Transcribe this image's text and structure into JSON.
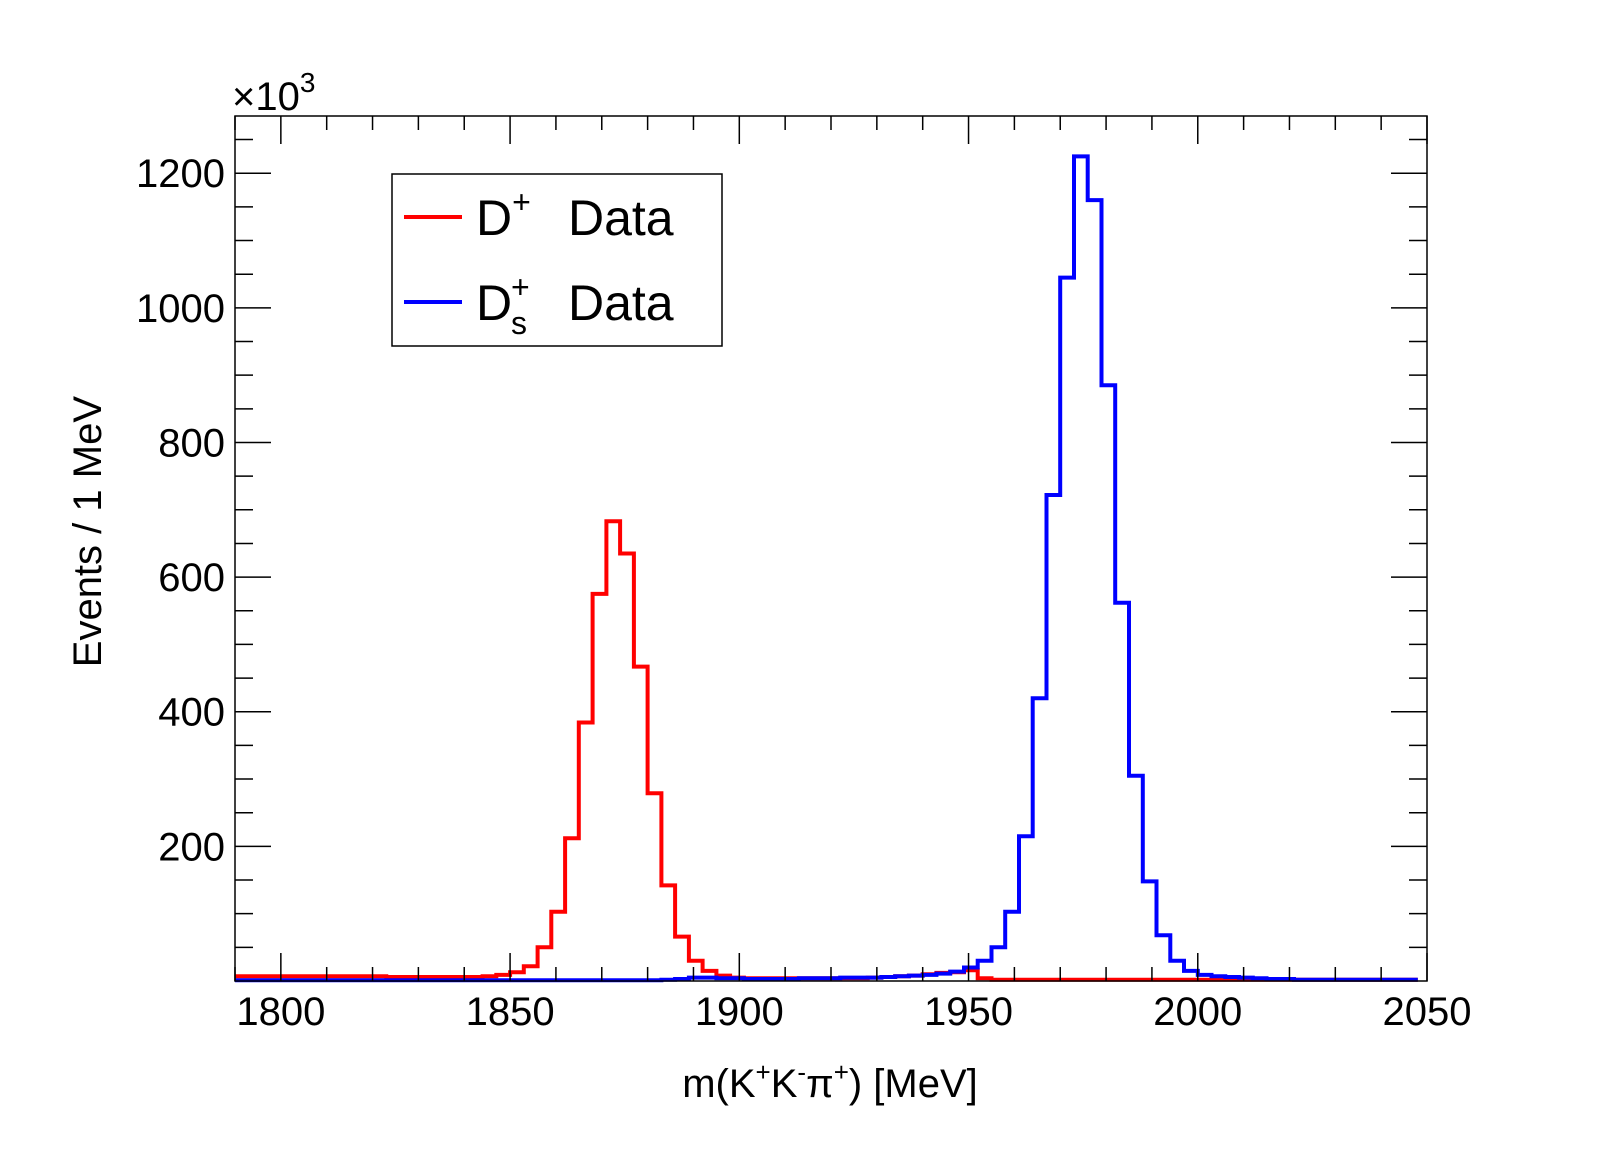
{
  "chart_data": {
    "type": "histogram",
    "xlabel": {
      "base": "m(K",
      "sup1": "+",
      "mid1": "K",
      "sup2": "-",
      "mid2": "π",
      "sup3": "+",
      "end": ") [MeV]"
    },
    "ylabel": "Events / 1 MeV",
    "y_multiplier": {
      "prefix": "×10",
      "exponent": "3"
    },
    "xlim": [
      1790,
      2050
    ],
    "ylim": [
      0,
      1285
    ],
    "x_ticks": [
      "1800",
      "1850",
      "1900",
      "1950",
      "2000",
      "2050"
    ],
    "y_ticks": [
      "200",
      "400",
      "600",
      "800",
      "1000",
      "1200"
    ],
    "bin_width": 3,
    "legend": {
      "position": "top-left",
      "items": [
        {
          "main": "D",
          "sup": "+",
          "sub": "",
          "text": "Data",
          "color": "#ff0000"
        },
        {
          "main": "D",
          "sup": "+",
          "sub": "s",
          "text": "Data",
          "color": "#0000ff"
        }
      ]
    },
    "series": [
      {
        "color": "#ff0000",
        "bins": [
          [
            1790,
            7
          ],
          [
            1793,
            7
          ],
          [
            1796,
            7
          ],
          [
            1799,
            7
          ],
          [
            1802,
            7
          ],
          [
            1805,
            7
          ],
          [
            1808,
            7
          ],
          [
            1811,
            7
          ],
          [
            1814,
            7
          ],
          [
            1817,
            7
          ],
          [
            1820,
            7
          ],
          [
            1823,
            6
          ],
          [
            1826,
            6
          ],
          [
            1829,
            6
          ],
          [
            1832,
            6
          ],
          [
            1835,
            6
          ],
          [
            1838,
            6
          ],
          [
            1841,
            6
          ],
          [
            1844,
            7
          ],
          [
            1847,
            9
          ],
          [
            1850,
            13
          ],
          [
            1853,
            22
          ],
          [
            1856,
            50
          ],
          [
            1859,
            103
          ],
          [
            1862,
            212
          ],
          [
            1865,
            384
          ],
          [
            1868,
            575
          ],
          [
            1871,
            683
          ],
          [
            1874,
            635
          ],
          [
            1877,
            467
          ],
          [
            1880,
            279
          ],
          [
            1883,
            142
          ],
          [
            1886,
            66
          ],
          [
            1889,
            30
          ],
          [
            1892,
            15
          ],
          [
            1895,
            8
          ],
          [
            1898,
            5
          ],
          [
            1901,
            4
          ],
          [
            1904,
            4
          ],
          [
            1907,
            4
          ],
          [
            1910,
            4
          ],
          [
            1913,
            4
          ],
          [
            1916,
            4
          ],
          [
            1919,
            4
          ],
          [
            1922,
            4
          ],
          [
            1925,
            4
          ],
          [
            1928,
            5
          ],
          [
            1931,
            6
          ],
          [
            1934,
            7
          ],
          [
            1937,
            8
          ],
          [
            1940,
            10
          ],
          [
            1943,
            12
          ],
          [
            1946,
            13
          ],
          [
            1949,
            16
          ],
          [
            1952,
            4
          ],
          [
            1955,
            2
          ],
          [
            1958,
            2
          ],
          [
            1961,
            2
          ],
          [
            1964,
            2
          ],
          [
            1967,
            2
          ],
          [
            1970,
            2
          ],
          [
            1973,
            2
          ],
          [
            1976,
            2
          ],
          [
            1979,
            2
          ],
          [
            1982,
            2
          ],
          [
            1985,
            2
          ],
          [
            1988,
            2
          ],
          [
            1991,
            2
          ],
          [
            1994,
            2
          ],
          [
            1997,
            2
          ],
          [
            2000,
            2
          ],
          [
            2003,
            2
          ],
          [
            2006,
            2
          ],
          [
            2009,
            2
          ],
          [
            2012,
            2
          ],
          [
            2015,
            2
          ],
          [
            2018,
            2
          ],
          [
            2021,
            2
          ],
          [
            2024,
            2
          ],
          [
            2027,
            2
          ],
          [
            2030,
            2
          ],
          [
            2033,
            2
          ],
          [
            2036,
            2
          ],
          [
            2039,
            2
          ],
          [
            2042,
            2
          ],
          [
            2045,
            2
          ]
        ]
      },
      {
        "color": "#0000ff",
        "bins": [
          [
            1790,
            1
          ],
          [
            1793,
            1
          ],
          [
            1796,
            1
          ],
          [
            1799,
            1
          ],
          [
            1802,
            1
          ],
          [
            1805,
            1
          ],
          [
            1808,
            1
          ],
          [
            1811,
            1
          ],
          [
            1814,
            1
          ],
          [
            1817,
            1
          ],
          [
            1820,
            1
          ],
          [
            1823,
            1
          ],
          [
            1826,
            1
          ],
          [
            1829,
            1
          ],
          [
            1832,
            1
          ],
          [
            1835,
            1
          ],
          [
            1838,
            1
          ],
          [
            1841,
            1
          ],
          [
            1844,
            1
          ],
          [
            1847,
            1
          ],
          [
            1850,
            1
          ],
          [
            1853,
            1
          ],
          [
            1856,
            1
          ],
          [
            1859,
            1
          ],
          [
            1862,
            1
          ],
          [
            1865,
            1
          ],
          [
            1868,
            1
          ],
          [
            1871,
            1
          ],
          [
            1874,
            1
          ],
          [
            1877,
            1
          ],
          [
            1880,
            1
          ],
          [
            1883,
            2
          ],
          [
            1886,
            3
          ],
          [
            1889,
            5
          ],
          [
            1892,
            5
          ],
          [
            1895,
            4
          ],
          [
            1898,
            4
          ],
          [
            1901,
            3
          ],
          [
            1904,
            3
          ],
          [
            1907,
            3
          ],
          [
            1910,
            3
          ],
          [
            1913,
            4
          ],
          [
            1916,
            4
          ],
          [
            1919,
            4
          ],
          [
            1922,
            5
          ],
          [
            1925,
            5
          ],
          [
            1928,
            5
          ],
          [
            1931,
            6
          ],
          [
            1934,
            7
          ],
          [
            1937,
            8
          ],
          [
            1940,
            9
          ],
          [
            1943,
            11
          ],
          [
            1946,
            14
          ],
          [
            1949,
            20
          ],
          [
            1952,
            30
          ],
          [
            1955,
            50
          ],
          [
            1958,
            103
          ],
          [
            1961,
            215
          ],
          [
            1964,
            420
          ],
          [
            1967,
            722
          ],
          [
            1970,
            1045
          ],
          [
            1973,
            1225
          ],
          [
            1976,
            1160
          ],
          [
            1979,
            885
          ],
          [
            1982,
            562
          ],
          [
            1985,
            305
          ],
          [
            1988,
            148
          ],
          [
            1991,
            68
          ],
          [
            1994,
            30
          ],
          [
            1997,
            15
          ],
          [
            2000,
            9
          ],
          [
            2003,
            7
          ],
          [
            2006,
            6
          ],
          [
            2009,
            5
          ],
          [
            2012,
            4
          ],
          [
            2015,
            3
          ],
          [
            2018,
            3
          ],
          [
            2021,
            2
          ],
          [
            2024,
            2
          ],
          [
            2027,
            2
          ],
          [
            2030,
            2
          ],
          [
            2033,
            2
          ],
          [
            2036,
            2
          ],
          [
            2039,
            2
          ],
          [
            2042,
            2
          ],
          [
            2045,
            2
          ]
        ]
      }
    ]
  }
}
